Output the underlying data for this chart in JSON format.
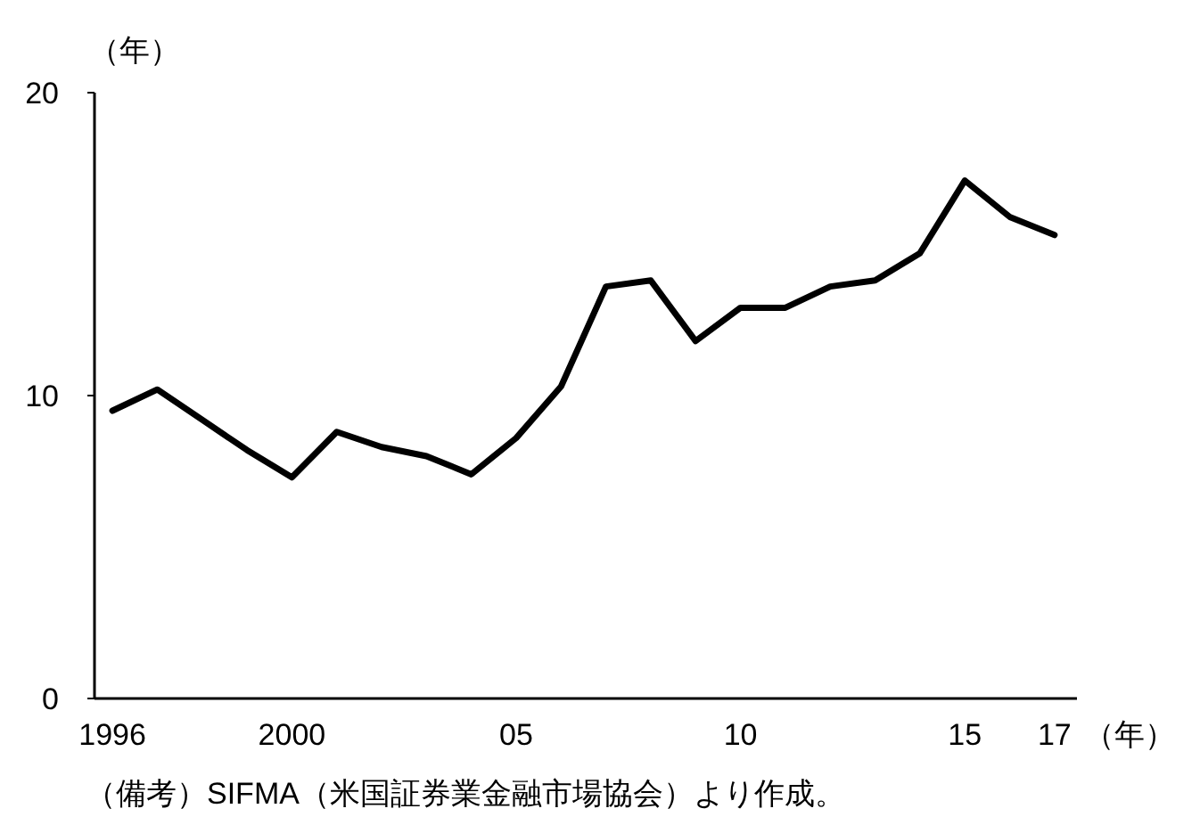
{
  "chart_data": {
    "type": "line",
    "xlabel": "（年）",
    "ylabel": "（年）",
    "annotations": [
      "（備考）SIFMA（米国証券業金融市場協会）より作成。"
    ],
    "x": [
      1996,
      1997,
      1998,
      1999,
      2000,
      2001,
      2002,
      2003,
      2004,
      2005,
      2006,
      2007,
      2008,
      2009,
      2010,
      2011,
      2012,
      2013,
      2014,
      2015,
      2016,
      2017
    ],
    "series": [
      {
        "color": "#000000",
        "values": [
          9.5,
          10.2,
          9.2,
          8.2,
          7.3,
          8.8,
          8.3,
          8.0,
          7.4,
          8.6,
          10.3,
          13.6,
          13.8,
          11.8,
          12.9,
          12.9,
          13.6,
          13.8,
          14.7,
          17.1,
          15.9,
          15.3
        ]
      }
    ],
    "xlim": [
      1995.6,
      2017.5
    ],
    "ylim": [
      0,
      20
    ],
    "xticks": [
      {
        "value": 1996,
        "label": "1996"
      },
      {
        "value": 2000,
        "label": "2000"
      },
      {
        "value": 2005,
        "label": "05"
      },
      {
        "value": 2010,
        "label": "10"
      },
      {
        "value": 2015,
        "label": "15"
      },
      {
        "value": 2017,
        "label": "17"
      }
    ],
    "yticks": [
      0,
      10,
      20
    ]
  }
}
